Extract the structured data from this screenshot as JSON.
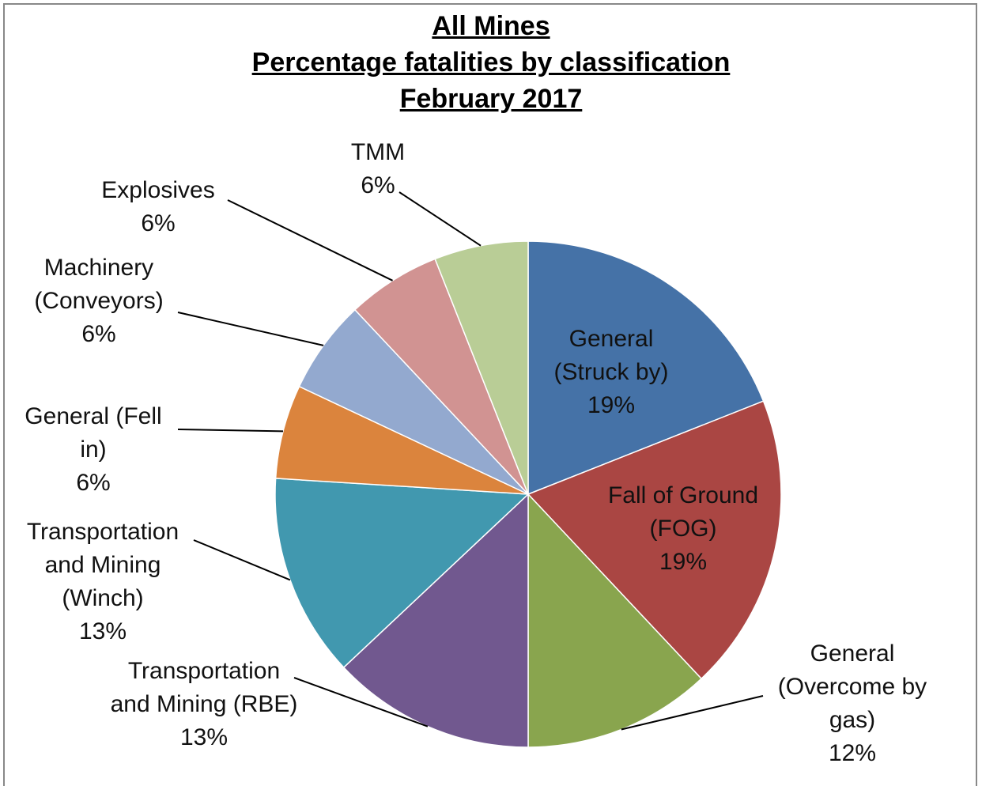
{
  "chart_data": {
    "type": "pie",
    "title": [
      "All Mines",
      "Percentage fatalities by classification",
      "February 2017"
    ],
    "categories": [
      "General (Struck by)",
      "Fall of Ground (FOG)",
      "General (Overcome by gas)",
      "Transportation and Mining (RBE)",
      "Transportation and Mining (Winch)",
      "General (Fell in)",
      "Machinery (Conveyors)",
      "Explosives",
      "TMM"
    ],
    "values": [
      19,
      19,
      12,
      13,
      13,
      6,
      6,
      6,
      6
    ],
    "value_labels": [
      "19%",
      "19%",
      "12%",
      "13%",
      "13%",
      "6%",
      "6%",
      "6%",
      "6%"
    ],
    "colors": [
      "#4572a7",
      "#aa4643",
      "#89a54e",
      "#71588f",
      "#4198af",
      "#db843d",
      "#93a9cf",
      "#d19392",
      "#b9cd96"
    ]
  }
}
